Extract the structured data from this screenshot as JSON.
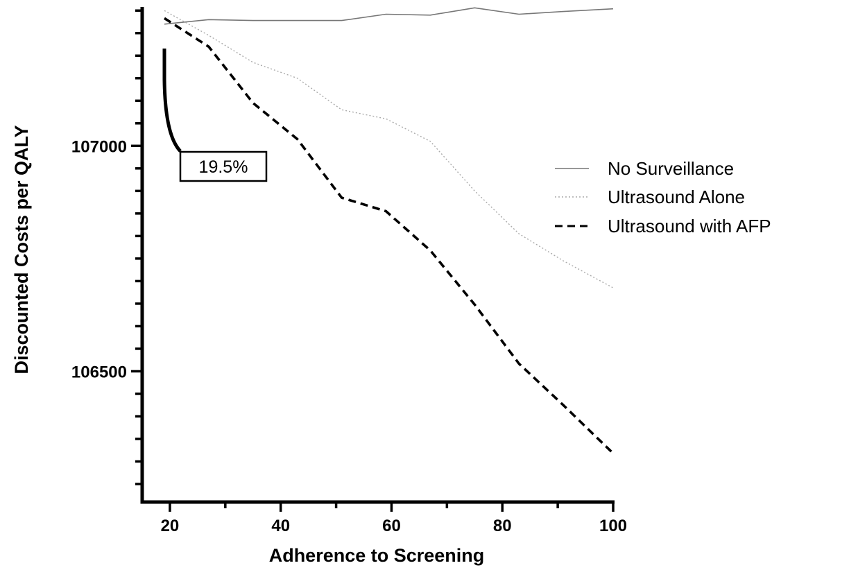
{
  "chart_data": {
    "type": "line",
    "title": "",
    "xlabel": "Adherence to Screening",
    "ylabel": "Discounted Costs per QALY",
    "xlim": [
      15,
      100
    ],
    "ylim": [
      106210,
      107305
    ],
    "x_ticks": [
      "20",
      "40",
      "60",
      "80",
      "100"
    ],
    "y_ticks": [
      "106500",
      "107000"
    ],
    "legend_position": "right",
    "series": [
      {
        "name": "No Surveillance",
        "style": "solid",
        "color": "#777777",
        "x": [
          19,
          27,
          35,
          43,
          51,
          59,
          67,
          75,
          83,
          91,
          100
        ],
        "y": [
          107270,
          107280,
          107278,
          107278,
          107278,
          107292,
          107290,
          107306,
          107292,
          107298,
          107304
        ]
      },
      {
        "name": "Ultrasound Alone",
        "style": "dotted",
        "color": "#aaaaaa",
        "x": [
          19,
          27,
          35,
          43,
          51,
          59,
          67,
          75,
          83,
          91,
          100
        ],
        "y": [
          107300,
          107245,
          107185,
          107150,
          107080,
          107060,
          107010,
          106900,
          106805,
          106745,
          106685
        ]
      },
      {
        "name": "Ultrasound with AFP",
        "style": "dashed",
        "color": "#000000",
        "x": [
          19,
          27,
          35,
          43,
          51,
          59,
          67,
          75,
          83,
          91,
          100
        ],
        "y": [
          107283,
          107220,
          107095,
          107015,
          106885,
          106855,
          106768,
          106648,
          106517,
          106425,
          106318
        ]
      }
    ],
    "annotations": [
      {
        "text": "19.5%"
      }
    ]
  }
}
